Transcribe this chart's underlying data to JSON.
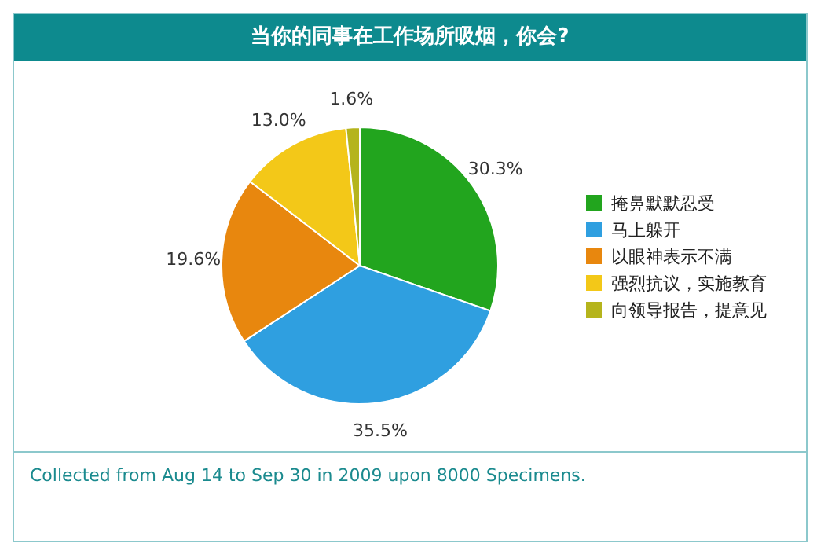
{
  "chart_data": {
    "type": "pie",
    "title": "当你的同事在工作场所吸烟，你会?",
    "categories": [
      "掩鼻默默忍受",
      "马上躲开",
      "以眼神表示不满",
      "强烈抗议，实施教育",
      "向领导报告，提意见"
    ],
    "values": [
      30.3,
      35.5,
      19.6,
      13.0,
      1.6
    ],
    "colors": [
      "#22a51e",
      "#2f9fe0",
      "#e8870e",
      "#f3c818",
      "#b5b41c"
    ],
    "value_labels": [
      "30.3%",
      "35.5%",
      "19.6%",
      "13.0%",
      "1.6%"
    ],
    "legend": "right",
    "annotations": [
      "Collected from Aug 14 to Sep 30 in 2009 upon 8000 Specimens."
    ]
  }
}
